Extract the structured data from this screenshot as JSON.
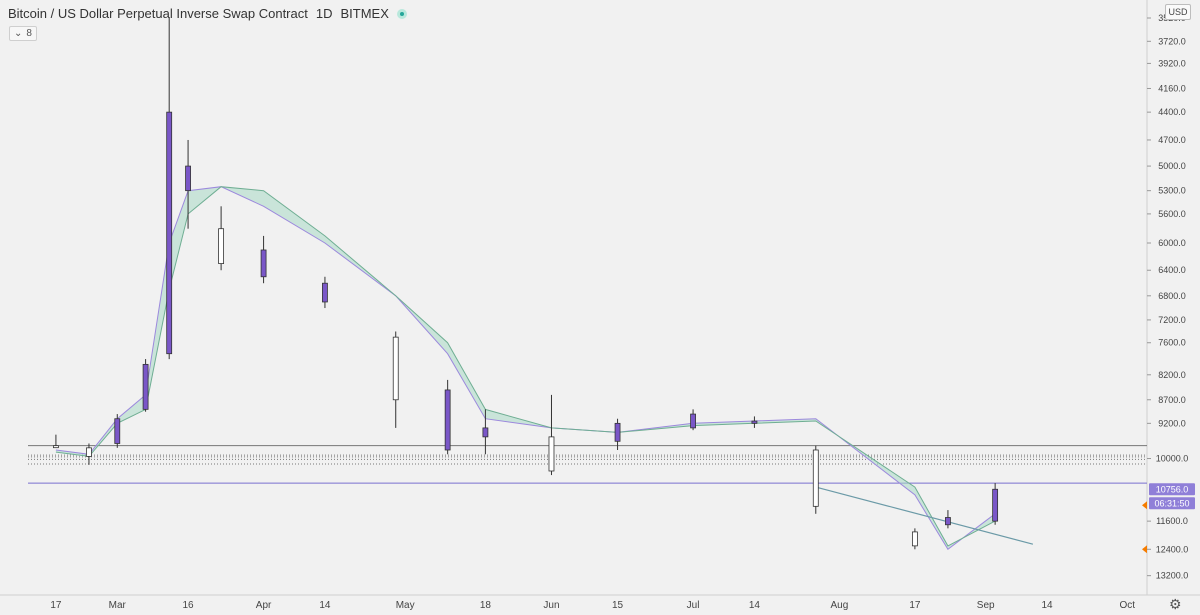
{
  "header": {
    "title": "Bitcoin / US Dollar Perpetual Inverse Swap Contract",
    "interval": "1D",
    "exchange": "BITMEX",
    "indicator_value": "8",
    "currency": "USD"
  },
  "icons": {
    "live": "live-status-dot-icon",
    "collapse": "chevron-down-icon",
    "settings": "gear-icon"
  },
  "colors": {
    "background": "#f1f1f1",
    "candle_up": "#ffffff",
    "candle_body": "#7a57c8",
    "candle_outline": "#333333",
    "band_green": "#a8d8c4",
    "band_purple": "#c2b5ea",
    "axis_label_bg": "#8f7fd8"
  },
  "price_axis": {
    "scale": "inverted-log",
    "ticks": [
      "3520.0",
      "3720.0",
      "3920.0",
      "4160.0",
      "4400.0",
      "4700.0",
      "5000.0",
      "5300.0",
      "5600.0",
      "6000.0",
      "6400.0",
      "6800.0",
      "7200.0",
      "7600.0",
      "8200.0",
      "8700.0",
      "9200.0",
      "10000.0",
      "11600.0",
      "12400.0",
      "13200.0"
    ],
    "last_price": "10756.0",
    "countdown": "06:31:50"
  },
  "time_axis": {
    "ticks": [
      "17",
      "Mar",
      "16",
      "Apr",
      "14",
      "May",
      "18",
      "Jun",
      "15",
      "Jul",
      "14",
      "Aug",
      "17",
      "Sep",
      "14",
      "Oct"
    ]
  },
  "chart_data": {
    "type": "candlestick",
    "title": "Bitcoin / US Dollar Perpetual Inverse Swap Contract",
    "interval": "1D",
    "y_axis": "inverted",
    "ylim": [
      3520,
      13400
    ],
    "period": "17 Feb - 3 Sep",
    "candles": [
      {
        "date": "2020-02-17",
        "o": 9700,
        "h": 9750,
        "c": 9720,
        "l": 9450
      },
      {
        "date": "2020-02-24",
        "o": 9750,
        "h": 10150,
        "c": 9950,
        "l": 9650
      },
      {
        "date": "2020-03-01",
        "o": 9650,
        "h": 9750,
        "c": 9100,
        "l": 9000
      },
      {
        "date": "2020-03-07",
        "o": 8900,
        "h": 8950,
        "c": 8000,
        "l": 7900
      },
      {
        "date": "2020-03-12",
        "o": 7800,
        "h": 7900,
        "c": 4400,
        "l": 3520
      },
      {
        "date": "2020-03-16",
        "o": 5300,
        "h": 5800,
        "c": 5000,
        "l": 4700
      },
      {
        "date": "2020-03-23",
        "o": 5800,
        "h": 6400,
        "c": 6300,
        "l": 5500
      },
      {
        "date": "2020-04-01",
        "o": 6500,
        "h": 6600,
        "c": 6100,
        "l": 5900
      },
      {
        "date": "2020-04-14",
        "o": 6900,
        "h": 7000,
        "c": 6600,
        "l": 6500
      },
      {
        "date": "2020-04-29",
        "o": 7500,
        "h": 9300,
        "c": 8700,
        "l": 7400
      },
      {
        "date": "2020-05-10",
        "o": 9800,
        "h": 9900,
        "c": 8500,
        "l": 8300
      },
      {
        "date": "2020-05-18",
        "o": 9500,
        "h": 9900,
        "c": 9300,
        "l": 8900
      },
      {
        "date": "2020-06-01",
        "o": 9500,
        "h": 10400,
        "c": 10300,
        "l": 8600
      },
      {
        "date": "2020-06-15",
        "o": 9600,
        "h": 9800,
        "c": 9200,
        "l": 9100
      },
      {
        "date": "2020-07-01",
        "o": 9300,
        "h": 9350,
        "c": 9000,
        "l": 8900
      },
      {
        "date": "2020-07-14",
        "o": 9200,
        "h": 9300,
        "c": 9150,
        "l": 9050
      },
      {
        "date": "2020-07-27",
        "o": 9800,
        "h": 11400,
        "c": 11200,
        "l": 9700
      },
      {
        "date": "2020-08-17",
        "o": 11900,
        "h": 12400,
        "c": 12300,
        "l": 11800
      },
      {
        "date": "2020-08-24",
        "o": 11700,
        "h": 11800,
        "c": 11500,
        "l": 11300
      },
      {
        "date": "2020-09-03",
        "o": 11600,
        "h": 11700,
        "c": 10756,
        "l": 10600
      }
    ],
    "bands": [
      {
        "name": "fast",
        "color": "#c2b5ea",
        "values": [
          9800,
          9900,
          9100,
          8600,
          6000,
          5300,
          5250,
          5500,
          6000,
          6800,
          7800,
          9100,
          9300,
          9400,
          9200,
          9150,
          9100,
          10900,
          12400,
          11400
        ]
      },
      {
        "name": "slow",
        "color": "#a8d8c4",
        "values": [
          9850,
          9950,
          9200,
          8900,
          6700,
          5600,
          5250,
          5300,
          5900,
          6800,
          7600,
          8900,
          9300,
          9400,
          9250,
          9200,
          9150,
          10700,
          12300,
          11600
        ]
      }
    ],
    "horizontal_levels": [
      9700,
      9920,
      9960,
      10020,
      10130,
      10600
    ],
    "trendline": {
      "from": {
        "date": "2020-07-27",
        "price": 10700
      },
      "to": {
        "date": "2020-09-11",
        "price": 12250
      }
    }
  }
}
